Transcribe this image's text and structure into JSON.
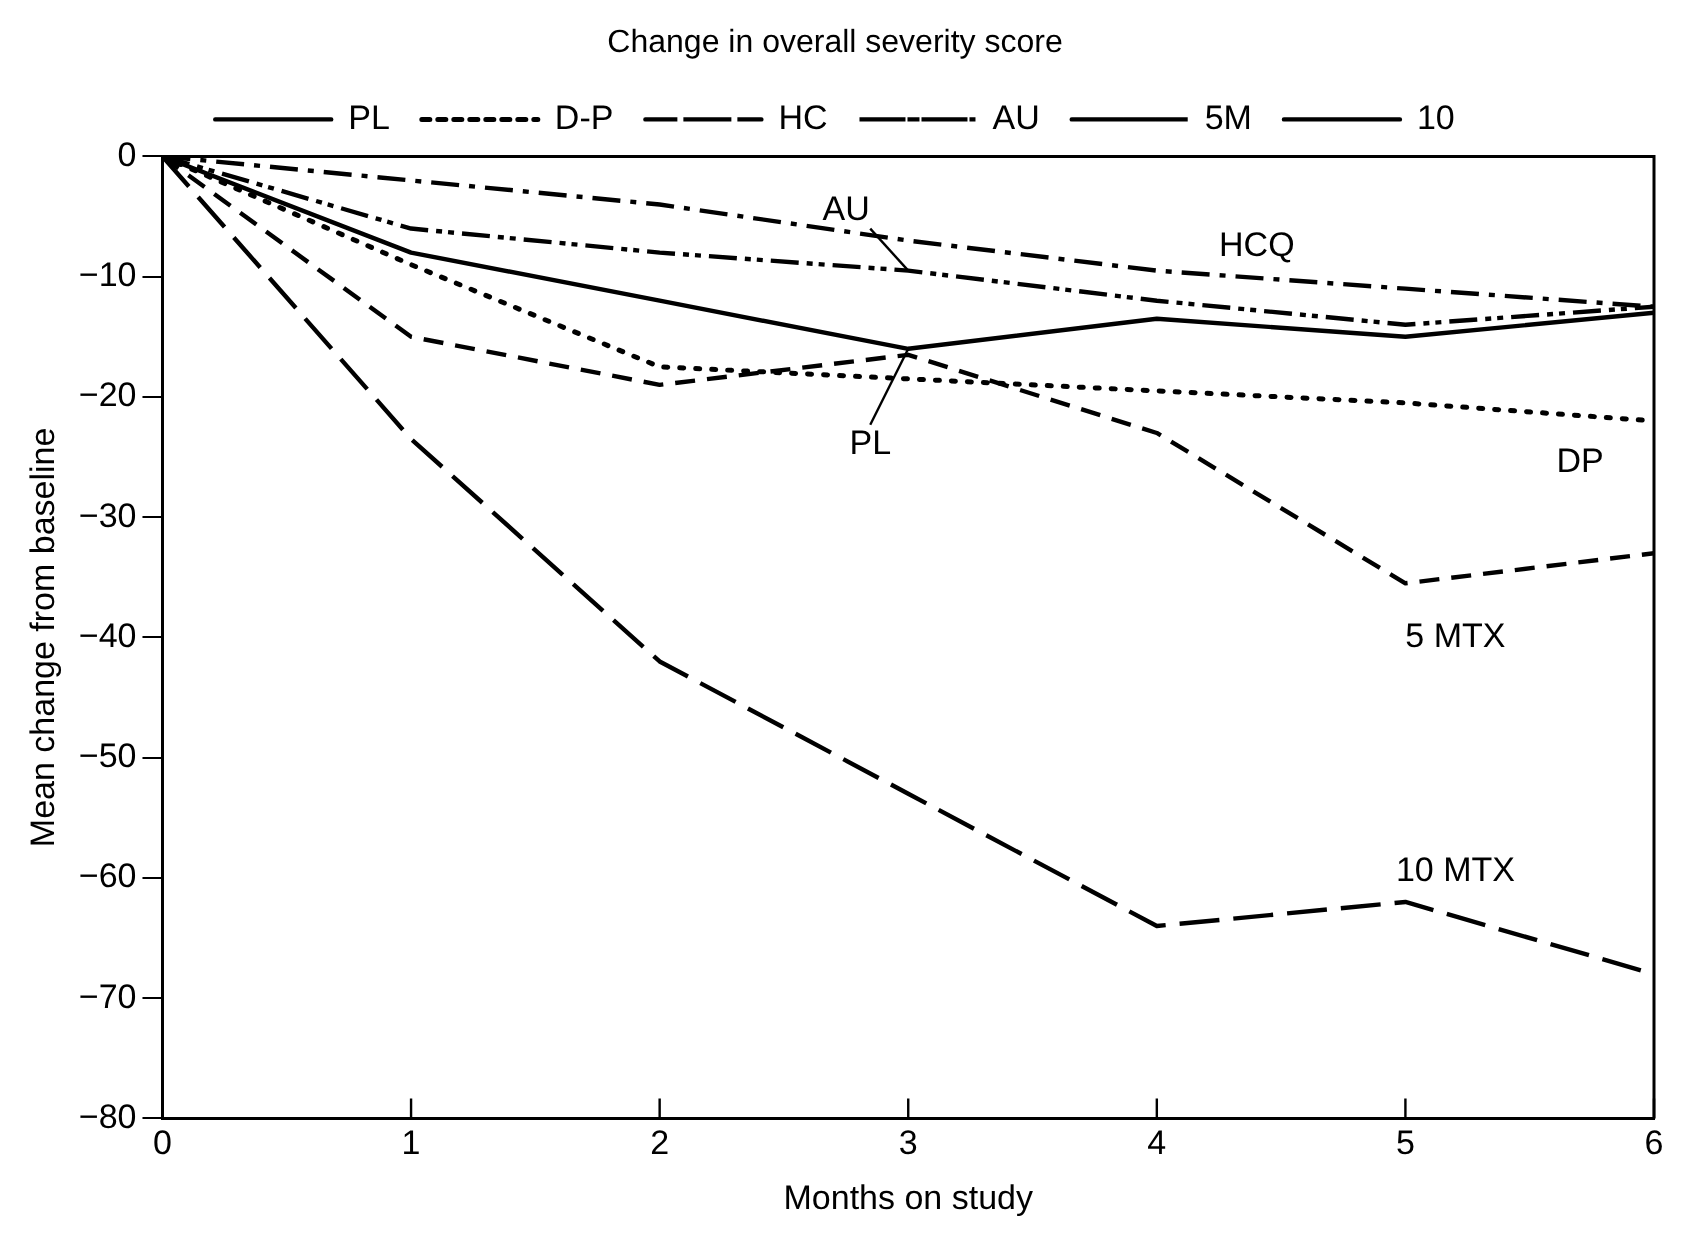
{
  "chart_data": {
    "type": "line",
    "title": "Change in overall severity score",
    "xlabel": "Months on study",
    "ylabel": "Mean change from baseline",
    "x": [
      0,
      1,
      2,
      3,
      4,
      5,
      6
    ],
    "series": [
      {
        "name": "PL",
        "color": "#000000",
        "line_style": "solid",
        "values": [
          0,
          -8,
          -12,
          -16,
          -13.5,
          -15,
          -13
        ]
      },
      {
        "name": "D-P",
        "color": "#000000",
        "line_style": "dotted",
        "values": [
          0,
          -9,
          -17.5,
          -18.5,
          -19.5,
          -20.5,
          -22
        ]
      },
      {
        "name": "HC",
        "color": "#000000",
        "line_style": "dashed",
        "values": [
          0,
          -2,
          -4,
          -7,
          -9.5,
          -11,
          -12.5
        ]
      },
      {
        "name": "AU",
        "color": "#000000",
        "line_style": "dashed",
        "values": [
          0,
          -6,
          -8,
          -9.5,
          -12,
          -14,
          -12.5
        ]
      },
      {
        "name": "5M",
        "color": "#000000",
        "line_style": "dashed",
        "values": [
          0,
          -15,
          -19,
          -16.5,
          -23,
          -35.5,
          -33
        ]
      },
      {
        "name": "10",
        "color": "#000000",
        "line_style": "dashed",
        "values": [
          0,
          -23.5,
          -42,
          -53,
          -64,
          -62,
          -68
        ]
      }
    ],
    "xlim": [
      0,
      6
    ],
    "xticks": [
      0,
      1,
      2,
      3,
      4,
      5,
      6
    ],
    "ylim": [
      -80,
      0
    ],
    "yticks": [
      0,
      -10,
      -20,
      -30,
      -40,
      -50,
      -60,
      -70,
      -80
    ],
    "grid": false,
    "legend": "top",
    "marker": "none",
    "annotations": [
      {
        "text": "AU",
        "x": 3,
        "y": -9.5
      },
      {
        "text": "HCQ",
        "x": 4,
        "y": -9.5
      },
      {
        "text": "PL",
        "x": 3,
        "y": -16
      },
      {
        "text": "DP",
        "x": 6,
        "y": -22
      },
      {
        "text": "5 MTX",
        "x": 5,
        "y": -35.5
      },
      {
        "text": "10 MTX",
        "x": 5,
        "y": -62
      }
    ]
  }
}
